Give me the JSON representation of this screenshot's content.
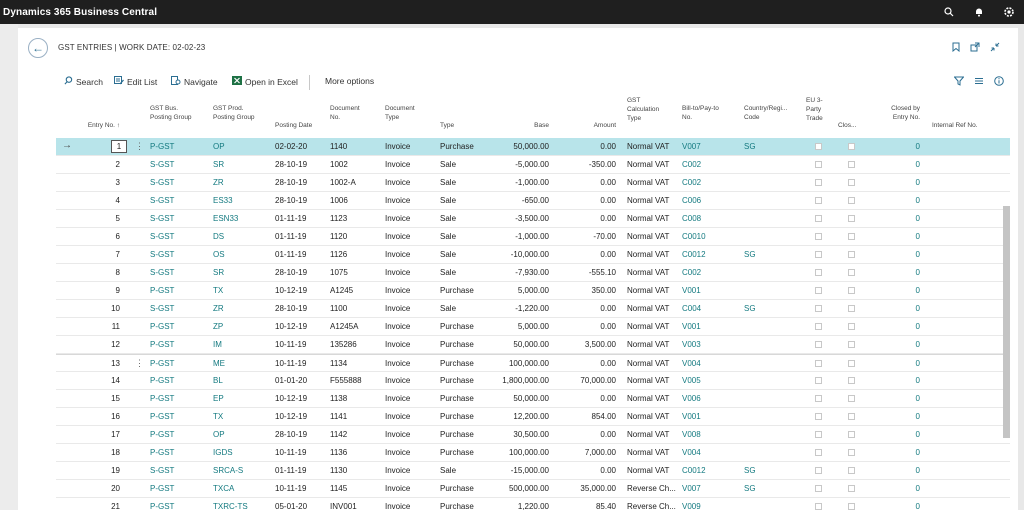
{
  "app": {
    "title": "Dynamics 365 Business Central"
  },
  "topbar_icons": [
    "search-icon",
    "bell-icon",
    "gear-icon"
  ],
  "header": {
    "title": "GST ENTRIES | WORK DATE: 02-02-23"
  },
  "actions": {
    "search": "Search",
    "edit_list": "Edit List",
    "navigate": "Navigate",
    "open_excel": "Open in Excel",
    "more": "More options"
  },
  "columns": {
    "entry_no": "Entry No. ↑",
    "bus_group": [
      "GST Bus.",
      "Posting Group"
    ],
    "prod_group": [
      "GST Prod.",
      "Posting Group"
    ],
    "posting_date": "Posting Date",
    "doc_no": [
      "Document",
      "No."
    ],
    "doc_type": [
      "Document",
      "Type"
    ],
    "type": "Type",
    "base": "Base",
    "amount": "Amount",
    "calc_type": [
      "GST",
      "Calculation",
      "Type"
    ],
    "bill_to": [
      "Bill-to/Pay-to",
      "No."
    ],
    "country": [
      "Country/Regi...",
      "Code"
    ],
    "eu3": [
      "EU 3-",
      "Party",
      "Trade"
    ],
    "closed": "Clos...",
    "closed_by": [
      "Closed by",
      "Entry No."
    ],
    "internal_ref": "Internal Ref No."
  },
  "rows": [
    {
      "no": "1",
      "bus": "P-GST",
      "prod": "OP",
      "date": "02-02-20",
      "doc": "1140",
      "dtype": "Invoice",
      "type": "Purchase",
      "base": "50,000.00",
      "amount": "0.00",
      "calc": "Normal VAT",
      "bill": "V007",
      "country": "SG",
      "closed_by": "0"
    },
    {
      "no": "2",
      "bus": "S-GST",
      "prod": "SR",
      "date": "28-10-19",
      "doc": "1002",
      "dtype": "Invoice",
      "type": "Sale",
      "base": "-5,000.00",
      "amount": "-350.00",
      "calc": "Normal VAT",
      "bill": "C002",
      "country": "",
      "closed_by": "0"
    },
    {
      "no": "3",
      "bus": "S-GST",
      "prod": "ZR",
      "date": "28-10-19",
      "doc": "1002-A",
      "dtype": "Invoice",
      "type": "Sale",
      "base": "-1,000.00",
      "amount": "0.00",
      "calc": "Normal VAT",
      "bill": "C002",
      "country": "",
      "closed_by": "0"
    },
    {
      "no": "4",
      "bus": "S-GST",
      "prod": "ES33",
      "date": "28-10-19",
      "doc": "1006",
      "dtype": "Invoice",
      "type": "Sale",
      "base": "-650.00",
      "amount": "0.00",
      "calc": "Normal VAT",
      "bill": "C006",
      "country": "",
      "closed_by": "0"
    },
    {
      "no": "5",
      "bus": "S-GST",
      "prod": "ESN33",
      "date": "01-11-19",
      "doc": "1123",
      "dtype": "Invoice",
      "type": "Sale",
      "base": "-3,500.00",
      "amount": "0.00",
      "calc": "Normal VAT",
      "bill": "C008",
      "country": "",
      "closed_by": "0"
    },
    {
      "no": "6",
      "bus": "S-GST",
      "prod": "DS",
      "date": "01-11-19",
      "doc": "1120",
      "dtype": "Invoice",
      "type": "Sale",
      "base": "-1,000.00",
      "amount": "-70.00",
      "calc": "Normal VAT",
      "bill": "C0010",
      "country": "",
      "closed_by": "0"
    },
    {
      "no": "7",
      "bus": "S-GST",
      "prod": "OS",
      "date": "01-11-19",
      "doc": "1126",
      "dtype": "Invoice",
      "type": "Sale",
      "base": "-10,000.00",
      "amount": "0.00",
      "calc": "Normal VAT",
      "bill": "C0012",
      "country": "SG",
      "closed_by": "0"
    },
    {
      "no": "8",
      "bus": "S-GST",
      "prod": "SR",
      "date": "28-10-19",
      "doc": "1075",
      "dtype": "Invoice",
      "type": "Sale",
      "base": "-7,930.00",
      "amount": "-555.10",
      "calc": "Normal VAT",
      "bill": "C002",
      "country": "",
      "closed_by": "0"
    },
    {
      "no": "9",
      "bus": "P-GST",
      "prod": "TX",
      "date": "10-12-19",
      "doc": "A1245",
      "dtype": "Invoice",
      "type": "Purchase",
      "base": "5,000.00",
      "amount": "350.00",
      "calc": "Normal VAT",
      "bill": "V001",
      "country": "",
      "closed_by": "0"
    },
    {
      "no": "10",
      "bus": "S-GST",
      "prod": "ZR",
      "date": "28-10-19",
      "doc": "1100",
      "dtype": "Invoice",
      "type": "Sale",
      "base": "-1,220.00",
      "amount": "0.00",
      "calc": "Normal VAT",
      "bill": "C004",
      "country": "SG",
      "closed_by": "0"
    },
    {
      "no": "11",
      "bus": "P-GST",
      "prod": "ZP",
      "date": "10-12-19",
      "doc": "A1245A",
      "dtype": "Invoice",
      "type": "Purchase",
      "base": "5,000.00",
      "amount": "0.00",
      "calc": "Normal VAT",
      "bill": "V001",
      "country": "",
      "closed_by": "0"
    },
    {
      "no": "12",
      "bus": "P-GST",
      "prod": "IM",
      "date": "10-11-19",
      "doc": "135286",
      "dtype": "Invoice",
      "type": "Purchase",
      "base": "50,000.00",
      "amount": "3,500.00",
      "calc": "Normal VAT",
      "bill": "V003",
      "country": "",
      "closed_by": "0"
    },
    {
      "no": "13",
      "bus": "P-GST",
      "prod": "ME",
      "date": "10-11-19",
      "doc": "1134",
      "dtype": "Invoice",
      "type": "Purchase",
      "base": "100,000.00",
      "amount": "0.00",
      "calc": "Normal VAT",
      "bill": "V004",
      "country": "",
      "closed_by": "0"
    },
    {
      "no": "14",
      "bus": "P-GST",
      "prod": "BL",
      "date": "01-01-20",
      "doc": "F555888",
      "dtype": "Invoice",
      "type": "Purchase",
      "base": "1,800,000.00",
      "amount": "70,000.00",
      "calc": "Normal VAT",
      "bill": "V005",
      "country": "",
      "closed_by": "0"
    },
    {
      "no": "15",
      "bus": "P-GST",
      "prod": "EP",
      "date": "10-12-19",
      "doc": "1138",
      "dtype": "Invoice",
      "type": "Purchase",
      "base": "50,000.00",
      "amount": "0.00",
      "calc": "Normal VAT",
      "bill": "V006",
      "country": "",
      "closed_by": "0"
    },
    {
      "no": "16",
      "bus": "P-GST",
      "prod": "TX",
      "date": "10-12-19",
      "doc": "1141",
      "dtype": "Invoice",
      "type": "Purchase",
      "base": "12,200.00",
      "amount": "854.00",
      "calc": "Normal VAT",
      "bill": "V001",
      "country": "",
      "closed_by": "0"
    },
    {
      "no": "17",
      "bus": "P-GST",
      "prod": "OP",
      "date": "28-10-19",
      "doc": "1142",
      "dtype": "Invoice",
      "type": "Purchase",
      "base": "30,500.00",
      "amount": "0.00",
      "calc": "Normal VAT",
      "bill": "V008",
      "country": "",
      "closed_by": "0"
    },
    {
      "no": "18",
      "bus": "P-GST",
      "prod": "IGDS",
      "date": "10-11-19",
      "doc": "1136",
      "dtype": "Invoice",
      "type": "Purchase",
      "base": "100,000.00",
      "amount": "7,000.00",
      "calc": "Normal VAT",
      "bill": "V004",
      "country": "",
      "closed_by": "0"
    },
    {
      "no": "19",
      "bus": "S-GST",
      "prod": "SRCA-S",
      "date": "01-11-19",
      "doc": "1130",
      "dtype": "Invoice",
      "type": "Sale",
      "base": "-15,000.00",
      "amount": "0.00",
      "calc": "Normal VAT",
      "bill": "C0012",
      "country": "SG",
      "closed_by": "0"
    },
    {
      "no": "20",
      "bus": "P-GST",
      "prod": "TXCA",
      "date": "10-11-19",
      "doc": "1145",
      "dtype": "Invoice",
      "type": "Purchase",
      "base": "500,000.00",
      "amount": "35,000.00",
      "calc": "Reverse Ch...",
      "bill": "V007",
      "country": "SG",
      "closed_by": "0"
    },
    {
      "no": "21",
      "bus": "P-GST",
      "prod": "TXRC-TS",
      "date": "05-01-20",
      "doc": "INV001",
      "dtype": "Invoice",
      "type": "Purchase",
      "base": "1,220.00",
      "amount": "85.40",
      "calc": "Reverse Ch...",
      "bill": "V009",
      "country": "",
      "closed_by": "0"
    }
  ]
}
